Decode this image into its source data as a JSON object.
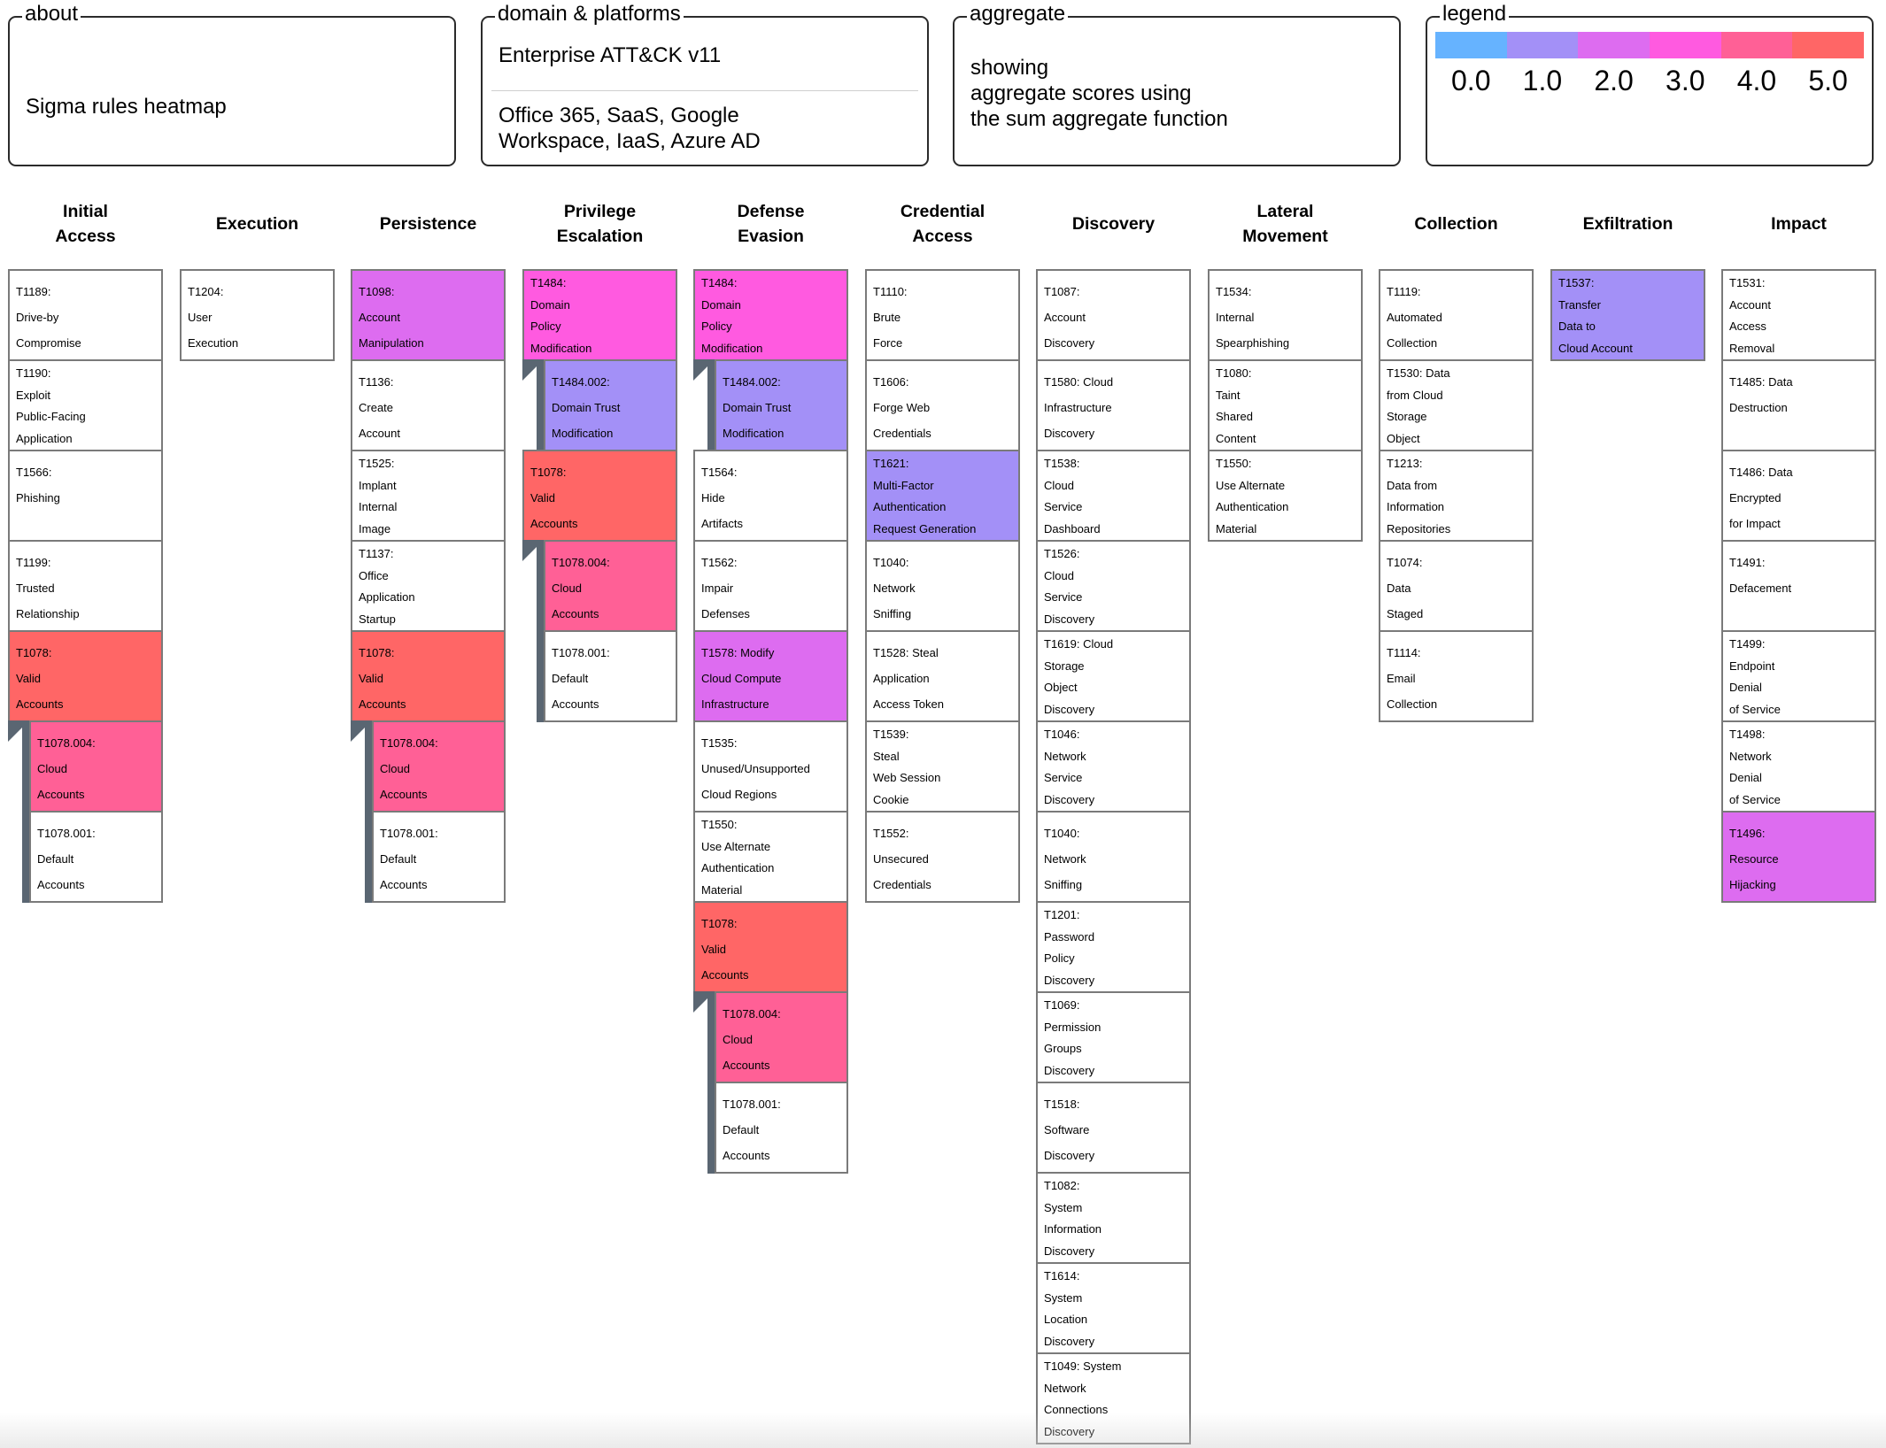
{
  "header": {
    "about": {
      "title": "about",
      "text": "Sigma rules heatmap"
    },
    "domain": {
      "title": "domain & platforms",
      "domain_text": "Enterprise ATT&CK v11",
      "platforms_text": "Office 365, SaaS, Google\nWorkspace, IaaS, Azure AD"
    },
    "aggregate": {
      "title": "aggregate",
      "text": "showing\naggregate scores using\nthe sum aggregate function"
    },
    "legend": {
      "title": "legend",
      "items": [
        {
          "label": "0.0",
          "color": "#66b3ff"
        },
        {
          "label": "1.0",
          "color": "#a390f7"
        },
        {
          "label": "2.0",
          "color": "#dd6cf0"
        },
        {
          "label": "3.0",
          "color": "#ff5ae0"
        },
        {
          "label": "4.0",
          "color": "#ff6096"
        },
        {
          "label": "5.0",
          "color": "#ff6666"
        }
      ]
    }
  },
  "colors": {
    "white": "#ffffff",
    "purple": "#a390f7",
    "violet": "#dd6cf0",
    "magenta": "#ff5ae0",
    "pink": "#ff6096",
    "red": "#ff6666"
  },
  "tactics": [
    {
      "name": "Initial\nAccess",
      "techniques": [
        {
          "label": "T1189:\nDrive-by\nCompromise",
          "score_color": "white"
        },
        {
          "label": "T1190:\nExploit\nPublic-Facing\nApplication",
          "score_color": "white"
        },
        {
          "label": "T1566:\nPhishing",
          "score_color": "white"
        },
        {
          "label": "T1199:\nTrusted\nRelationship",
          "score_color": "white"
        },
        {
          "label": "T1078:\nValid\nAccounts",
          "score_color": "red"
        },
        {
          "label": "T1078.004:\nCloud\nAccounts",
          "score_color": "pink",
          "sub": true
        },
        {
          "label": "T1078.001:\nDefault\nAccounts",
          "score_color": "white",
          "sub": true
        }
      ]
    },
    {
      "name": "Execution",
      "techniques": [
        {
          "label": "T1204:\nUser\nExecution",
          "score_color": "white"
        }
      ]
    },
    {
      "name": "Persistence",
      "techniques": [
        {
          "label": "T1098:\nAccount\nManipulation",
          "score_color": "violet"
        },
        {
          "label": "T1136:\nCreate\nAccount",
          "score_color": "white"
        },
        {
          "label": "T1525:\nImplant\nInternal\nImage",
          "score_color": "white"
        },
        {
          "label": "T1137:\nOffice\nApplication\nStartup",
          "score_color": "white"
        },
        {
          "label": "T1078:\nValid\nAccounts",
          "score_color": "red"
        },
        {
          "label": "T1078.004:\nCloud\nAccounts",
          "score_color": "pink",
          "sub": true
        },
        {
          "label": "T1078.001:\nDefault\nAccounts",
          "score_color": "white",
          "sub": true
        }
      ]
    },
    {
      "name": "Privilege\nEscalation",
      "techniques": [
        {
          "label": "T1484:\nDomain\nPolicy\nModification",
          "score_color": "magenta"
        },
        {
          "label": "T1484.002:\nDomain Trust\nModification",
          "score_color": "purple",
          "sub": true
        },
        {
          "label": "T1078:\nValid\nAccounts",
          "score_color": "red"
        },
        {
          "label": "T1078.004:\nCloud\nAccounts",
          "score_color": "pink",
          "sub": true
        },
        {
          "label": "T1078.001:\nDefault\nAccounts",
          "score_color": "white",
          "sub": true
        }
      ]
    },
    {
      "name": "Defense\nEvasion",
      "techniques": [
        {
          "label": "T1484:\nDomain\nPolicy\nModification",
          "score_color": "magenta"
        },
        {
          "label": "T1484.002:\nDomain Trust\nModification",
          "score_color": "purple",
          "sub": true
        },
        {
          "label": "T1564:\nHide\nArtifacts",
          "score_color": "white"
        },
        {
          "label": "T1562:\nImpair\nDefenses",
          "score_color": "white"
        },
        {
          "label": "T1578: Modify\nCloud Compute\nInfrastructure",
          "score_color": "violet"
        },
        {
          "label": "T1535:\nUnused/Unsupported\nCloud Regions",
          "score_color": "white"
        },
        {
          "label": "T1550:\nUse Alternate\nAuthentication\nMaterial",
          "score_color": "white"
        },
        {
          "label": "T1078:\nValid\nAccounts",
          "score_color": "red"
        },
        {
          "label": "T1078.004:\nCloud\nAccounts",
          "score_color": "pink",
          "sub": true
        },
        {
          "label": "T1078.001:\nDefault\nAccounts",
          "score_color": "white",
          "sub": true
        }
      ]
    },
    {
      "name": "Credential\nAccess",
      "techniques": [
        {
          "label": "T1110:\nBrute\nForce",
          "score_color": "white"
        },
        {
          "label": "T1606:\nForge Web\nCredentials",
          "score_color": "white"
        },
        {
          "label": "T1621:\nMulti-Factor\nAuthentication\nRequest Generation",
          "score_color": "purple"
        },
        {
          "label": "T1040:\nNetwork\nSniffing",
          "score_color": "white"
        },
        {
          "label": "T1528: Steal\nApplication\nAccess Token",
          "score_color": "white"
        },
        {
          "label": "T1539:\nSteal\nWeb Session\nCookie",
          "score_color": "white"
        },
        {
          "label": "T1552:\nUnsecured\nCredentials",
          "score_color": "white"
        }
      ]
    },
    {
      "name": "Discovery",
      "techniques": [
        {
          "label": "T1087:\nAccount\nDiscovery",
          "score_color": "white"
        },
        {
          "label": "T1580: Cloud\nInfrastructure\nDiscovery",
          "score_color": "white"
        },
        {
          "label": "T1538:\nCloud\nService\nDashboard",
          "score_color": "white"
        },
        {
          "label": "T1526:\nCloud\nService\nDiscovery",
          "score_color": "white"
        },
        {
          "label": "T1619: Cloud\nStorage\nObject\nDiscovery",
          "score_color": "white"
        },
        {
          "label": "T1046:\nNetwork\nService\nDiscovery",
          "score_color": "white"
        },
        {
          "label": "T1040:\nNetwork\nSniffing",
          "score_color": "white"
        },
        {
          "label": "T1201:\nPassword\nPolicy\nDiscovery",
          "score_color": "white"
        },
        {
          "label": "T1069:\nPermission\nGroups\nDiscovery",
          "score_color": "white"
        },
        {
          "label": "T1518:\nSoftware\nDiscovery",
          "score_color": "white"
        },
        {
          "label": "T1082:\nSystem\nInformation\nDiscovery",
          "score_color": "white"
        },
        {
          "label": "T1614:\nSystem\nLocation\nDiscovery",
          "score_color": "white"
        },
        {
          "label": "T1049: System\nNetwork\nConnections\nDiscovery",
          "score_color": "white"
        }
      ]
    },
    {
      "name": "Lateral\nMovement",
      "techniques": [
        {
          "label": "T1534:\nInternal\nSpearphishing",
          "score_color": "white"
        },
        {
          "label": "T1080:\nTaint\nShared\nContent",
          "score_color": "white"
        },
        {
          "label": "T1550:\nUse Alternate\nAuthentication\nMaterial",
          "score_color": "white"
        }
      ]
    },
    {
      "name": "Collection",
      "techniques": [
        {
          "label": "T1119:\nAutomated\nCollection",
          "score_color": "white"
        },
        {
          "label": "T1530: Data\nfrom Cloud\nStorage\nObject",
          "score_color": "white"
        },
        {
          "label": "T1213:\nData from\nInformation\nRepositories",
          "score_color": "white"
        },
        {
          "label": "T1074:\nData\nStaged",
          "score_color": "white"
        },
        {
          "label": "T1114:\nEmail\nCollection",
          "score_color": "white"
        }
      ]
    },
    {
      "name": "Exfiltration",
      "techniques": [
        {
          "label": "T1537:\nTransfer\nData to\nCloud Account",
          "score_color": "purple"
        }
      ]
    },
    {
      "name": "Impact",
      "techniques": [
        {
          "label": "T1531:\nAccount\nAccess\nRemoval",
          "score_color": "white"
        },
        {
          "label": "T1485: Data\nDestruction",
          "score_color": "white"
        },
        {
          "label": "T1486: Data\nEncrypted\nfor Impact",
          "score_color": "white"
        },
        {
          "label": "T1491:\nDefacement",
          "score_color": "white"
        },
        {
          "label": "T1499:\nEndpoint\nDenial\nof Service",
          "score_color": "white"
        },
        {
          "label": "T1498:\nNetwork\nDenial\nof Service",
          "score_color": "white"
        },
        {
          "label": "T1496:\nResource\nHijacking",
          "score_color": "violet"
        }
      ]
    }
  ]
}
